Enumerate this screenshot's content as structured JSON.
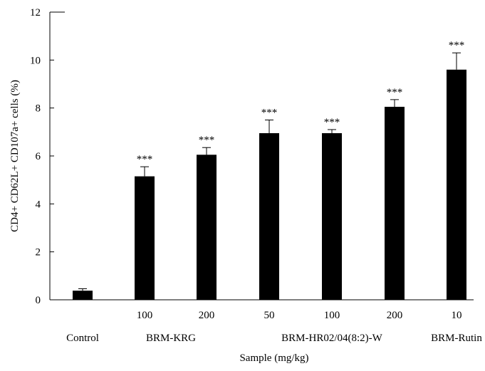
{
  "chart_data": {
    "type": "bar",
    "ylabel": "CD4+ CD62L+ CD107a+ cells (%)",
    "xlabel": "Sample (mg/kg)",
    "ylim": [
      0,
      12
    ],
    "yticks": [
      0,
      2,
      4,
      6,
      8,
      10,
      12
    ],
    "grid": false,
    "legend": "none",
    "bar_color": "#000000",
    "significance_marker": "***",
    "categories": [
      "Control",
      "100",
      "200",
      "50",
      "100",
      "200",
      "10"
    ],
    "values": [
      0.38,
      5.15,
      6.05,
      6.95,
      6.95,
      8.05,
      9.6
    ],
    "errors": [
      0.08,
      0.4,
      0.3,
      0.55,
      0.15,
      0.3,
      0.7
    ],
    "significance": [
      "",
      "***",
      "***",
      "***",
      "***",
      "***",
      "***"
    ],
    "dose_labels": [
      "",
      "100",
      "200",
      "50",
      "100",
      "200",
      "10"
    ],
    "group_labels": [
      {
        "label": "Control",
        "bars": [
          0
        ]
      },
      {
        "label": "BRM-KRG",
        "bars": [
          1,
          2
        ]
      },
      {
        "label": "BRM-HR02/04(8:2)-W",
        "bars": [
          3,
          4,
          5
        ]
      },
      {
        "label": "BRM-Rutin",
        "bars": [
          6
        ]
      }
    ]
  }
}
